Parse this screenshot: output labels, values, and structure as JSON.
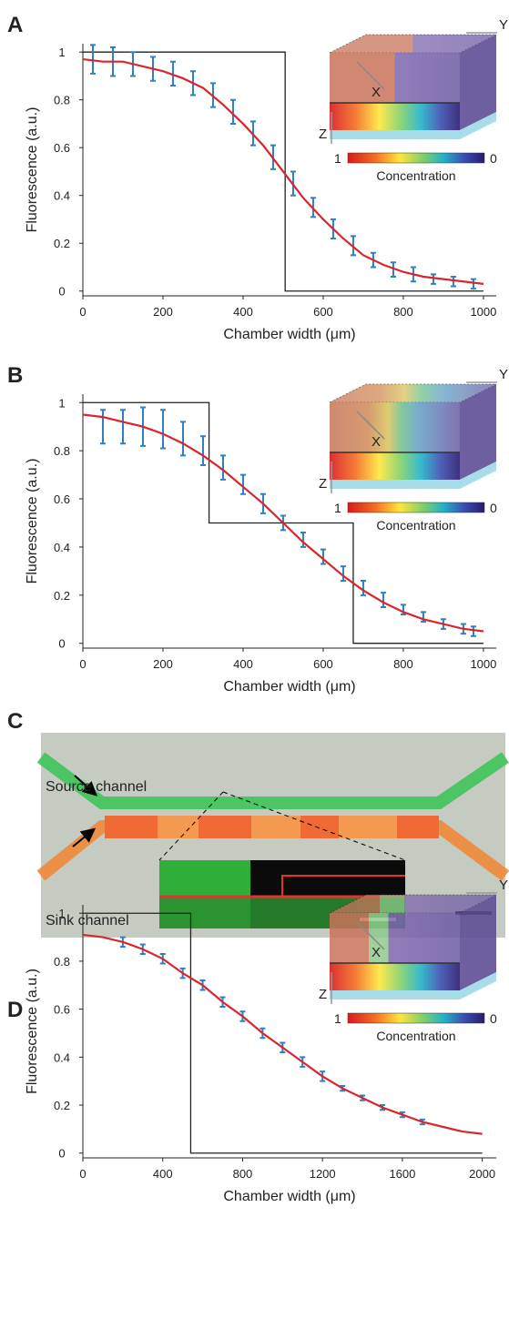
{
  "chart_data": [
    {
      "type": "line",
      "panel_label": "A",
      "xlabel": "Chamber width (μm)",
      "ylabel": "Fluorescence (a.u.)",
      "xlim": [
        0,
        1032
      ],
      "ylim": [
        -0.02,
        1.035
      ],
      "xticks": [
        0,
        200,
        400,
        600,
        800,
        1000
      ],
      "yticks": [
        0,
        0.2,
        0.4,
        0.6,
        0.8,
        1
      ],
      "series": [
        {
          "color": "#222222",
          "line_width": 1.3,
          "x": [
            0,
            505,
            505,
            1000
          ],
          "values": [
            1,
            1,
            0,
            0
          ]
        },
        {
          "color": "#2f7fc1",
          "line_width": 2,
          "x": [
            25,
            75,
            125,
            175,
            225,
            275,
            325,
            375,
            425,
            475,
            525,
            575,
            625,
            675,
            725,
            775,
            825,
            875,
            925,
            975
          ],
          "values": [
            0.97,
            0.96,
            0.95,
            0.93,
            0.91,
            0.87,
            0.82,
            0.75,
            0.66,
            0.56,
            0.45,
            0.35,
            0.26,
            0.19,
            0.13,
            0.09,
            0.07,
            0.05,
            0.04,
            0.03
          ],
          "errors": [
            0.06,
            0.06,
            0.05,
            0.05,
            0.05,
            0.05,
            0.05,
            0.05,
            0.05,
            0.05,
            0.05,
            0.04,
            0.04,
            0.04,
            0.03,
            0.03,
            0.03,
            0.02,
            0.02,
            0.02
          ]
        },
        {
          "color": "#d9262e",
          "line_width": 2.2,
          "x": [
            0,
            50,
            100,
            150,
            200,
            250,
            300,
            350,
            400,
            450,
            500,
            550,
            600,
            650,
            700,
            750,
            800,
            850,
            900,
            950,
            1000
          ],
          "values": [
            0.97,
            0.96,
            0.96,
            0.94,
            0.92,
            0.89,
            0.85,
            0.78,
            0.7,
            0.61,
            0.5,
            0.39,
            0.3,
            0.22,
            0.15,
            0.11,
            0.08,
            0.06,
            0.05,
            0.04,
            0.03
          ]
        }
      ],
      "inset": {
        "axis_labels": [
          "Y",
          "X",
          "Z"
        ],
        "colorbar_ticks": [
          1,
          0
        ],
        "colorbar_label": "Concentration"
      }
    },
    {
      "type": "line",
      "panel_label": "B",
      "xlabel": "Chamber width (μm)",
      "ylabel": "Fluorescence (a.u.)",
      "xlim": [
        0,
        1032
      ],
      "ylim": [
        -0.02,
        1.035
      ],
      "xticks": [
        0,
        200,
        400,
        600,
        800,
        1000
      ],
      "yticks": [
        0,
        0.2,
        0.4,
        0.6,
        0.8,
        1
      ],
      "series": [
        {
          "color": "#222222",
          "line_width": 1.3,
          "x": [
            0,
            315,
            315,
            675,
            675,
            1000
          ],
          "values": [
            1,
            1,
            0.5,
            0.5,
            0,
            0
          ]
        },
        {
          "color": "#2f7fc1",
          "line_width": 2,
          "x": [
            50,
            100,
            150,
            200,
            250,
            300,
            350,
            400,
            450,
            500,
            550,
            600,
            650,
            700,
            750,
            800,
            850,
            900,
            950,
            975
          ],
          "values": [
            0.9,
            0.9,
            0.9,
            0.89,
            0.85,
            0.8,
            0.73,
            0.66,
            0.58,
            0.5,
            0.43,
            0.36,
            0.29,
            0.23,
            0.18,
            0.14,
            0.11,
            0.08,
            0.06,
            0.05
          ],
          "errors": [
            0.07,
            0.07,
            0.08,
            0.08,
            0.07,
            0.06,
            0.05,
            0.04,
            0.04,
            0.03,
            0.03,
            0.03,
            0.03,
            0.03,
            0.03,
            0.02,
            0.02,
            0.02,
            0.02,
            0.02
          ]
        },
        {
          "color": "#d9262e",
          "line_width": 2.2,
          "x": [
            0,
            50,
            100,
            150,
            200,
            250,
            300,
            350,
            400,
            450,
            500,
            550,
            600,
            650,
            700,
            750,
            800,
            850,
            900,
            950,
            1000
          ],
          "values": [
            0.95,
            0.94,
            0.92,
            0.9,
            0.87,
            0.83,
            0.78,
            0.72,
            0.65,
            0.58,
            0.5,
            0.42,
            0.35,
            0.28,
            0.22,
            0.17,
            0.13,
            0.1,
            0.08,
            0.06,
            0.05
          ]
        }
      ],
      "inset": {
        "axis_labels": [
          "Y",
          "X",
          "Z"
        ],
        "colorbar_ticks": [
          1,
          0
        ],
        "colorbar_label": "Concentration"
      }
    },
    {
      "type": "line",
      "panel_label": "D",
      "xlabel": "Chamber width (μm)",
      "ylabel": "Fluorescence (a.u.)",
      "xlim": [
        0,
        2070
      ],
      "ylim": [
        -0.02,
        1.035
      ],
      "xticks": [
        0,
        400,
        800,
        1200,
        1600,
        2000
      ],
      "yticks": [
        0,
        0.2,
        0.4,
        0.6,
        0.8,
        1
      ],
      "series": [
        {
          "color": "#222222",
          "line_width": 1.3,
          "x": [
            0,
            540,
            540,
            2000
          ],
          "values": [
            1,
            1,
            0,
            0
          ]
        },
        {
          "color": "#2f7fc1",
          "line_width": 2,
          "x": [
            200,
            300,
            400,
            500,
            600,
            700,
            800,
            900,
            1000,
            1100,
            1200,
            1300,
            1400,
            1500,
            1600,
            1700
          ],
          "values": [
            0.88,
            0.85,
            0.81,
            0.75,
            0.7,
            0.63,
            0.57,
            0.5,
            0.44,
            0.38,
            0.32,
            0.27,
            0.23,
            0.19,
            0.16,
            0.13
          ],
          "errors": [
            0.02,
            0.02,
            0.02,
            0.02,
            0.02,
            0.02,
            0.02,
            0.02,
            0.02,
            0.02,
            0.02,
            0.01,
            0.01,
            0.01,
            0.01,
            0.01
          ]
        },
        {
          "color": "#d9262e",
          "line_width": 2.2,
          "x": [
            0,
            100,
            200,
            300,
            400,
            500,
            600,
            700,
            800,
            900,
            1000,
            1100,
            1200,
            1300,
            1400,
            1500,
            1600,
            1700,
            1800,
            1900,
            2000
          ],
          "values": [
            0.91,
            0.9,
            0.88,
            0.85,
            0.81,
            0.75,
            0.7,
            0.63,
            0.57,
            0.5,
            0.44,
            0.38,
            0.32,
            0.27,
            0.23,
            0.19,
            0.16,
            0.13,
            0.11,
            0.09,
            0.08
          ]
        }
      ],
      "inset": {
        "axis_labels": [
          "Y",
          "X",
          "Z"
        ],
        "colorbar_ticks": [
          1,
          0
        ],
        "colorbar_label": "Concentration"
      }
    }
  ],
  "panel_c": {
    "panel_label": "C",
    "annotations": [
      "Source channel",
      "Sink channel"
    ]
  }
}
